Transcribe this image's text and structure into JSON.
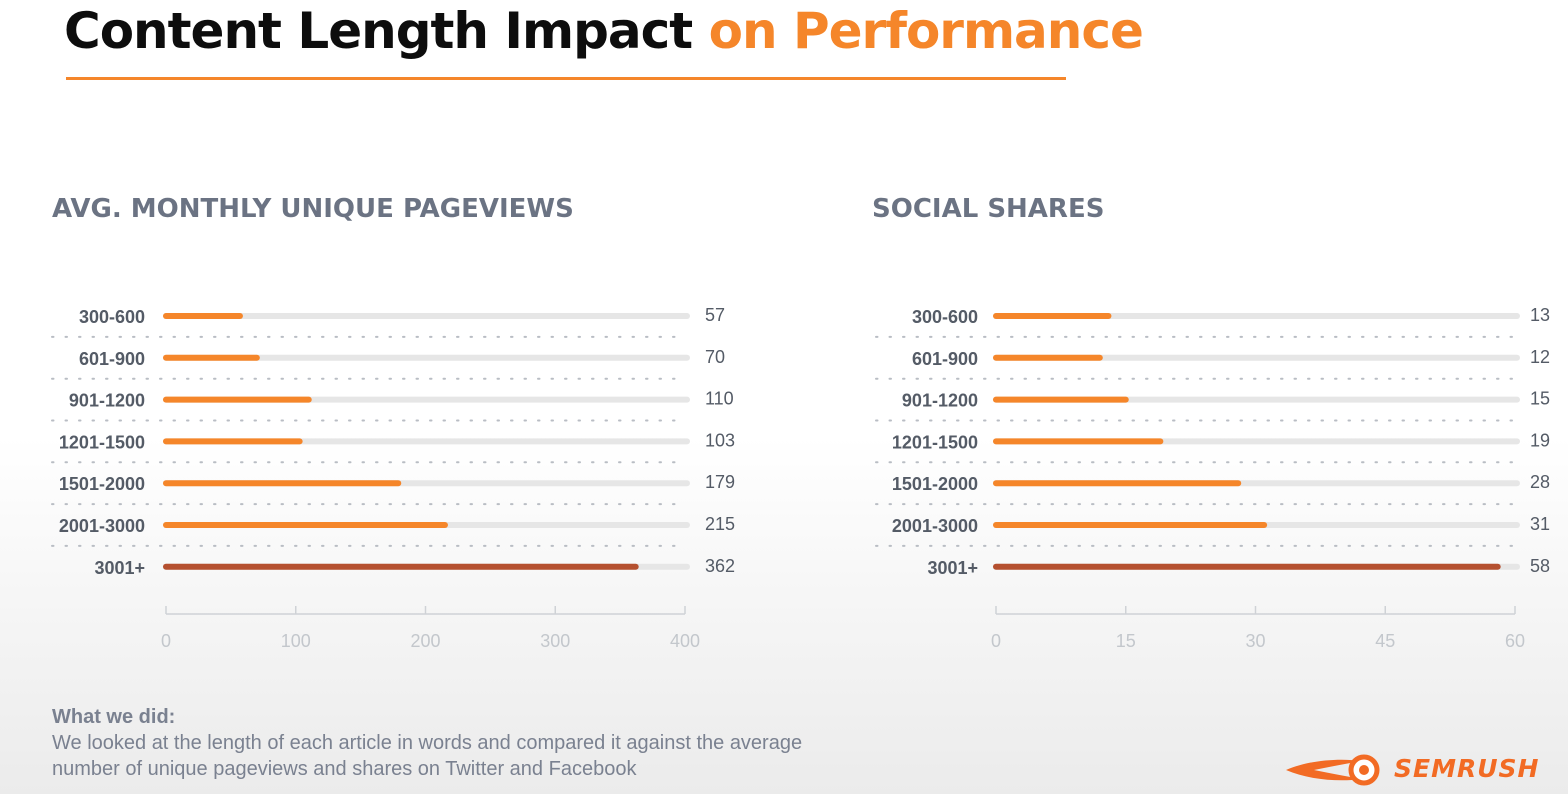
{
  "slide": {
    "title_part1": "Content Length Impact",
    "title_part2": "on Performance",
    "accent_color": "#f5862a"
  },
  "note": {
    "heading": "What we did:",
    "text": "We looked at the length of each article in words and compared it against the average number of unique pageviews and shares on Twitter and Facebook"
  },
  "logo": {
    "text": "SEMRUSH",
    "icon": "comet-fireball-icon",
    "color": "#f26b24"
  },
  "chart_data": [
    {
      "type": "bar",
      "orientation": "horizontal",
      "title": "AVG. MONTHLY UNIQUE PAGEVIEWS",
      "categories": [
        "300-600",
        "601-900",
        "901-1200",
        "1201-1500",
        "1501-2000",
        "2001-3000",
        "3001+"
      ],
      "values": [
        57,
        70,
        110,
        103,
        179,
        215,
        362
      ],
      "xlim": [
        0,
        400
      ],
      "ticks": [
        0,
        100,
        200,
        300,
        400
      ],
      "bar_color": "#f5862a",
      "highlight_color": "#b5502f",
      "highlight_category": "3001+",
      "track_color": "#e6e6e6",
      "grid": false,
      "legend": "none"
    },
    {
      "type": "bar",
      "orientation": "horizontal",
      "title": "SOCIAL SHARES",
      "categories": [
        "300-600",
        "601-900",
        "901-1200",
        "1201-1500",
        "1501-2000",
        "2001-3000",
        "3001+"
      ],
      "values": [
        13,
        12,
        15,
        19,
        28,
        31,
        58
      ],
      "xlim": [
        0,
        60
      ],
      "ticks": [
        0,
        15,
        30,
        45,
        60
      ],
      "bar_color": "#f5862a",
      "highlight_color": "#b5502f",
      "highlight_category": "3001+",
      "track_color": "#e6e6e6",
      "grid": false,
      "legend": "none"
    }
  ]
}
